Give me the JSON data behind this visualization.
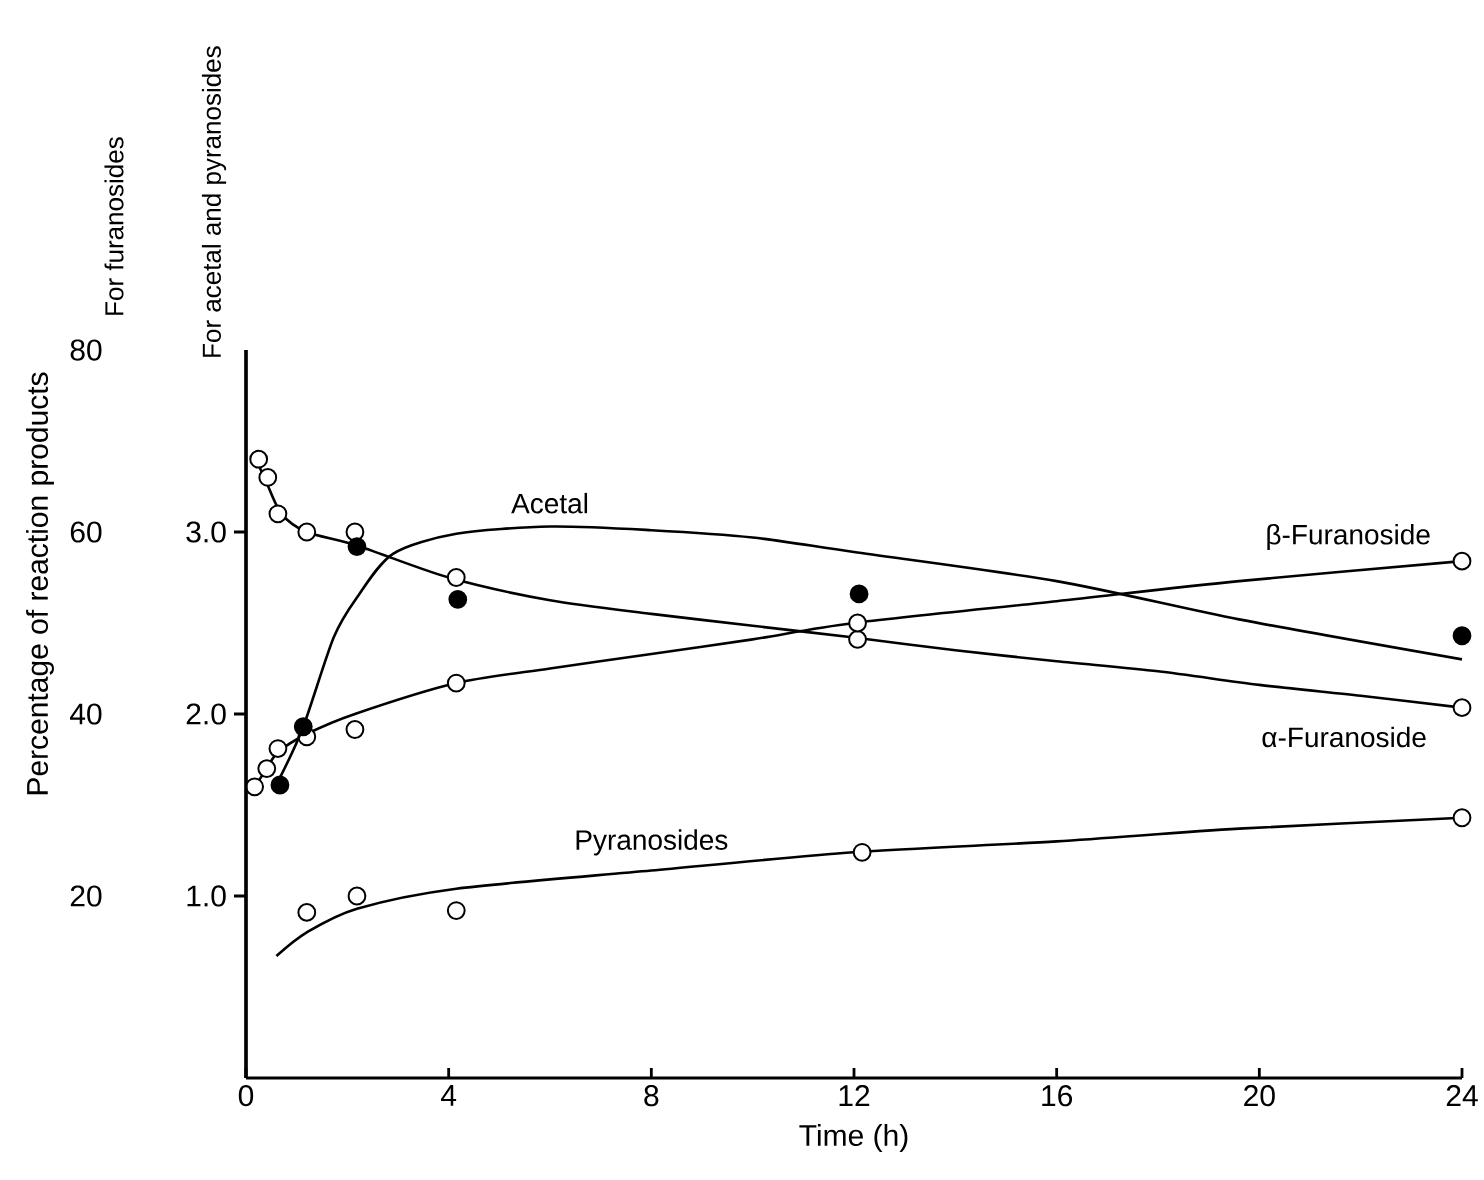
{
  "chart_data": {
    "type": "line",
    "xlabel": "Time (h)",
    "ylabel": "Percentage of reaction products",
    "y2label": "For acetal and pyranosides",
    "annotations": [
      "For furanosides"
    ],
    "xlim": [
      0,
      24
    ],
    "xticks": [
      0,
      4,
      8,
      12,
      16,
      20,
      24
    ],
    "ylim": [
      0,
      80
    ],
    "yticks": [
      20,
      40,
      60,
      80
    ],
    "y2lim": [
      0,
      4
    ],
    "y2ticks": [
      {
        "value": 1,
        "label": "1.0"
      },
      {
        "value": 2,
        "label": "2.0"
      },
      {
        "value": 3,
        "label": "3.0"
      }
    ],
    "series": [
      {
        "name": "α-Furanoside",
        "type": "line",
        "color": "#000000",
        "marker": "none",
        "x": [
          0.2,
          0.4,
          0.7,
          1.2,
          2.2,
          4,
          6,
          8,
          10,
          12,
          14,
          16,
          18,
          20,
          22,
          24
        ],
        "values": [
          68,
          65.5,
          62,
          60,
          58.5,
          55,
          52.5,
          51,
          49.7,
          48.4,
          47,
          45.8,
          44.7,
          43.2,
          42,
          40.7
        ]
      },
      {
        "type": "scatter",
        "color": "#ffffff",
        "marker": "circle",
        "x": [
          0.25,
          0.43,
          0.63,
          1.2,
          2.15,
          4.15,
          12.07,
          24
        ],
        "values": [
          68,
          66,
          62,
          60,
          60,
          55,
          48.2,
          40.7
        ]
      },
      {
        "name": "β-Furanoside",
        "type": "line",
        "color": "#000000",
        "marker": "none",
        "x": [
          0.17,
          0.41,
          0.63,
          1.2,
          2.15,
          4.15,
          6,
          8,
          10,
          12,
          16,
          19.6,
          24
        ],
        "values": [
          32,
          34,
          35.8,
          37.8,
          40,
          43.4,
          45,
          46.6,
          48.2,
          50,
          52.4,
          54.6,
          56.8
        ]
      },
      {
        "type": "scatter",
        "color": "#ffffff",
        "marker": "circle",
        "x": [
          0.17,
          0.41,
          0.63,
          1.2,
          2.15,
          4.15,
          12.07,
          24
        ],
        "values": [
          32,
          34,
          36.2,
          37.5,
          38.3,
          43.4,
          50,
          56.8
        ]
      },
      {
        "name": "Acetal",
        "type": "line",
        "axis": "y2",
        "color": "#000000",
        "marker": "none",
        "x": [
          0.67,
          1.13,
          1.73,
          2.19,
          2.9,
          4.15,
          6,
          8,
          10,
          12,
          16,
          19.6,
          24
        ],
        "values": [
          1.65,
          1.93,
          2.42,
          2.64,
          2.88,
          2.99,
          3.03,
          3.01,
          2.97,
          2.89,
          2.73,
          2.52,
          2.3
        ]
      },
      {
        "type": "scatter",
        "axis": "y2",
        "color": "#000000",
        "marker": "circle",
        "x": [
          0.67,
          1.13,
          2.19,
          4.18,
          12.1,
          24
        ],
        "values": [
          1.61,
          1.93,
          2.92,
          2.63,
          2.66,
          2.43
        ]
      },
      {
        "name": "Pyranosides",
        "type": "line",
        "axis": "y2",
        "color": "#000000",
        "marker": "none",
        "x": [
          0.6,
          1.2,
          2.19,
          4.15,
          8,
          12,
          16,
          19.6,
          24
        ],
        "values": [
          0.67,
          0.8,
          0.93,
          1.04,
          1.14,
          1.24,
          1.3,
          1.37,
          1.43
        ]
      },
      {
        "type": "scatter",
        "axis": "y2",
        "color": "#ffffff",
        "marker": "circle",
        "x": [
          1.2,
          2.19,
          4.15,
          12.16,
          24
        ],
        "values": [
          0.91,
          1.0,
          0.92,
          1.24,
          1.43
        ]
      }
    ]
  }
}
